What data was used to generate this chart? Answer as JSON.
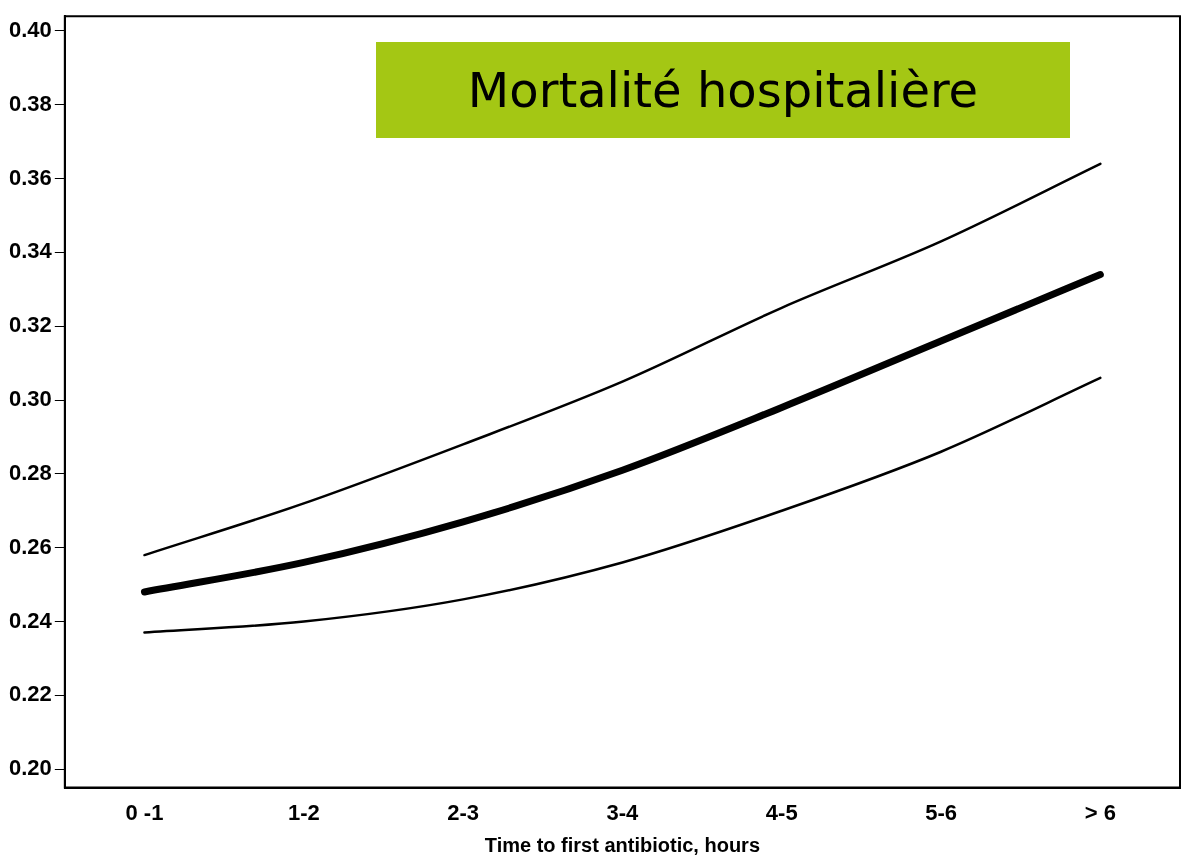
{
  "chart_data": {
    "type": "line",
    "title": "Mortalité hospitalière",
    "xlabel": "Time to first antibiotic, hours",
    "categories": [
      "0 -1",
      "1-2",
      "2-3",
      "3-4",
      "4-5",
      "5-6",
      "> 6"
    ],
    "series": [
      {
        "color": "#000000",
        "values": [
          0.258,
          0.272,
          0.288,
          0.305,
          0.325,
          0.343,
          0.364
        ]
      },
      {
        "color": "#000000",
        "values": [
          0.248,
          0.256,
          0.267,
          0.281,
          0.298,
          0.316,
          0.334
        ]
      },
      {
        "color": "#000000",
        "values": [
          0.237,
          0.24,
          0.246,
          0.256,
          0.27,
          0.286,
          0.306
        ]
      }
    ],
    "ylim": [
      0.195,
      0.404
    ],
    "yticks": [
      {
        "value": 0.2,
        "label": "0.20"
      },
      {
        "value": 0.22,
        "label": "0.22"
      },
      {
        "value": 0.24,
        "label": "0.24"
      },
      {
        "value": 0.26,
        "label": "0.26"
      },
      {
        "value": 0.28,
        "label": "0.28"
      },
      {
        "value": 0.3,
        "label": "0.30"
      },
      {
        "value": 0.32,
        "label": "0.32"
      },
      {
        "value": 0.34,
        "label": "0.34"
      },
      {
        "value": 0.36,
        "label": "0.36"
      },
      {
        "value": 0.38,
        "label": "0.38"
      },
      {
        "value": 0.4,
        "label": "0.40"
      }
    ],
    "grid": false,
    "legend": false,
    "marker": "none",
    "line_style": "solid"
  }
}
